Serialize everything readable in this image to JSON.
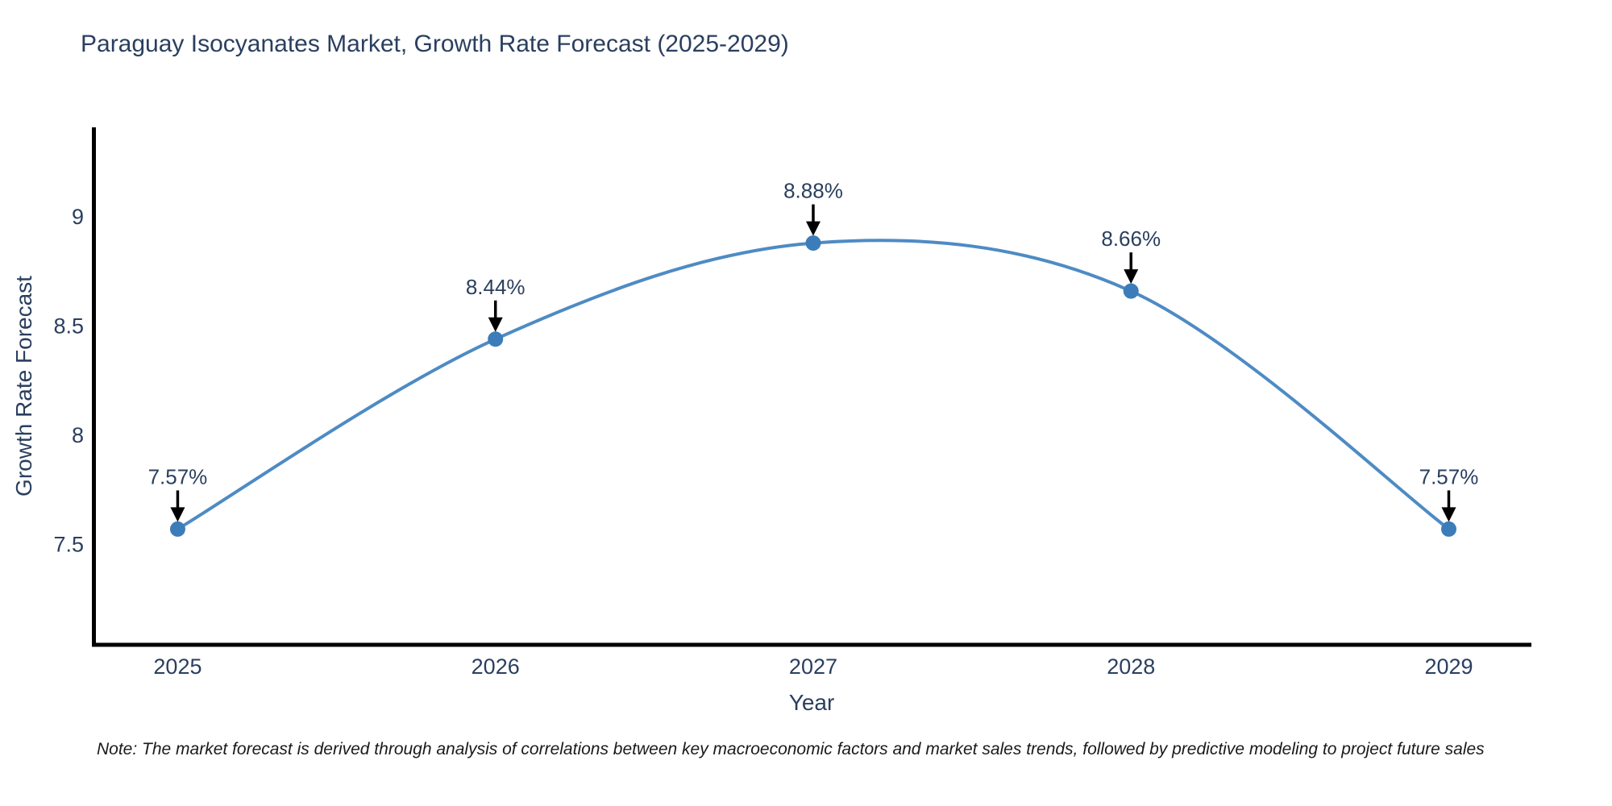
{
  "figure": {
    "title": "Paraguay Isocyanates Market, Growth Rate Forecast (2025-2029)",
    "note": "Note: The market forecast is derived through analysis of correlations between key macroeconomic factors and market sales trends, followed by predictive modeling to project future sales"
  },
  "chart_data": {
    "type": "line",
    "title": "Paraguay Isocyanates Market, Growth Rate Forecast (2025-2029)",
    "xlabel": "Year",
    "ylabel": "Growth Rate Forecast",
    "x": [
      2025,
      2026,
      2027,
      2028,
      2029
    ],
    "values": [
      7.57,
      8.44,
      8.88,
      8.66,
      7.57
    ],
    "point_labels": [
      "7.57%",
      "8.44%",
      "8.88%",
      "8.66%",
      "7.57%"
    ],
    "xtick_labels": [
      "2025",
      "2026",
      "2027",
      "2028",
      "2029"
    ],
    "ytick_values": [
      7.5,
      8,
      8.5,
      9
    ],
    "ytick_labels": [
      "7.5",
      "8",
      "8.5",
      "9"
    ],
    "xlim": [
      2024.73,
      2029.26
    ],
    "ylim": [
      7.04,
      9.41
    ],
    "line_shape": "spline",
    "grid": false,
    "legend_position": "none",
    "colors": {
      "line": "#4e8bc4",
      "marker": "#3c7db9",
      "axis": "#000000",
      "text": "#2a3f5f",
      "annotation": "#2a3f5f",
      "arrow": "#000000",
      "background": "#ffffff"
    }
  }
}
